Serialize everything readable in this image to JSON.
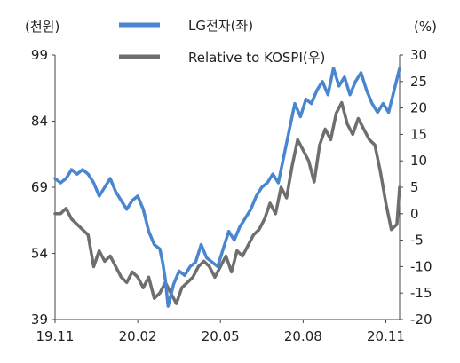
{
  "chart_data": {
    "type": "line",
    "title": "",
    "left_axis": {
      "unit_label": "(천원)",
      "ticks": [
        39,
        54,
        69,
        84,
        99
      ],
      "tick_labels": [
        "39",
        "54",
        "69",
        "84",
        "99"
      ],
      "range": [
        39,
        99
      ]
    },
    "right_axis": {
      "unit_label": "(%)",
      "ticks": [
        -20,
        -15,
        -10,
        -5,
        0,
        5,
        10,
        15,
        20,
        25,
        30
      ],
      "tick_labels": [
        "-20",
        "-15",
        "-10",
        "-5",
        "0",
        "5",
        "10",
        "15",
        "20",
        "25",
        "30"
      ],
      "range": [
        -20,
        30
      ]
    },
    "x_axis": {
      "tick_labels": [
        "19.11",
        "20.02",
        "20.05",
        "20.08",
        "20.11"
      ],
      "tick_positions": [
        0,
        3,
        6,
        9,
        12
      ],
      "range": [
        0,
        12.5
      ]
    },
    "grid": false,
    "legend_position": "top-center",
    "series": [
      {
        "name": "LG전자(좌)",
        "axis": "left",
        "color": "#4a86d0",
        "x": [
          0,
          0.2,
          0.4,
          0.6,
          0.8,
          1.0,
          1.2,
          1.4,
          1.6,
          1.8,
          2.0,
          2.2,
          2.4,
          2.6,
          2.8,
          3.0,
          3.2,
          3.4,
          3.6,
          3.8,
          3.9,
          4.0,
          4.1,
          4.3,
          4.5,
          4.7,
          4.9,
          5.1,
          5.3,
          5.5,
          5.7,
          5.9,
          6.1,
          6.3,
          6.5,
          6.7,
          6.9,
          7.1,
          7.3,
          7.5,
          7.7,
          7.9,
          8.1,
          8.3,
          8.5,
          8.7,
          8.9,
          9.1,
          9.3,
          9.5,
          9.7,
          9.9,
          10.1,
          10.3,
          10.5,
          10.7,
          10.9,
          11.1,
          11.3,
          11.5,
          11.7,
          11.9,
          12.1,
          12.3,
          12.5
        ],
        "values": [
          71,
          70,
          71,
          73,
          72,
          73,
          72,
          70,
          67,
          69,
          71,
          68,
          66,
          64,
          66,
          67,
          64,
          59,
          56,
          55,
          52,
          48,
          42,
          47,
          50,
          49,
          51,
          52,
          56,
          53,
          52,
          51,
          55,
          59,
          57,
          60,
          62,
          64,
          67,
          69,
          70,
          72,
          70,
          76,
          82,
          88,
          85,
          89,
          88,
          91,
          93,
          90,
          96,
          92,
          94,
          90,
          93,
          95,
          91,
          88,
          86,
          88,
          86,
          91,
          96
        ]
      },
      {
        "name": "Relative to KOSPI(우)",
        "axis": "right",
        "color": "#6e6e6e",
        "x": [
          0,
          0.2,
          0.4,
          0.6,
          0.8,
          1.0,
          1.2,
          1.4,
          1.6,
          1.8,
          2.0,
          2.2,
          2.4,
          2.6,
          2.8,
          3.0,
          3.2,
          3.4,
          3.6,
          3.8,
          4.0,
          4.2,
          4.4,
          4.6,
          4.8,
          5.0,
          5.2,
          5.4,
          5.6,
          5.8,
          6.0,
          6.2,
          6.4,
          6.6,
          6.8,
          7.0,
          7.2,
          7.4,
          7.6,
          7.8,
          8.0,
          8.2,
          8.4,
          8.6,
          8.8,
          9.0,
          9.2,
          9.4,
          9.6,
          9.8,
          10.0,
          10.2,
          10.4,
          10.6,
          10.8,
          11.0,
          11.2,
          11.4,
          11.6,
          11.8,
          12.0,
          12.2,
          12.4,
          12.5
        ],
        "values": [
          0,
          0,
          1,
          -1,
          -2,
          -3,
          -4,
          -10,
          -7,
          -9,
          -8,
          -10,
          -12,
          -13,
          -11,
          -12,
          -14,
          -12,
          -16,
          -15,
          -13,
          -15,
          -17,
          -14,
          -13,
          -12,
          -10,
          -9,
          -10,
          -12,
          -10,
          -8,
          -11,
          -7,
          -8,
          -6,
          -4,
          -3,
          -1,
          2,
          0,
          5,
          3,
          9,
          14,
          12,
          10,
          6,
          13,
          16,
          14,
          19,
          21,
          17,
          15,
          18,
          16,
          14,
          13,
          8,
          2,
          -3,
          -2,
          5
        ]
      }
    ]
  }
}
